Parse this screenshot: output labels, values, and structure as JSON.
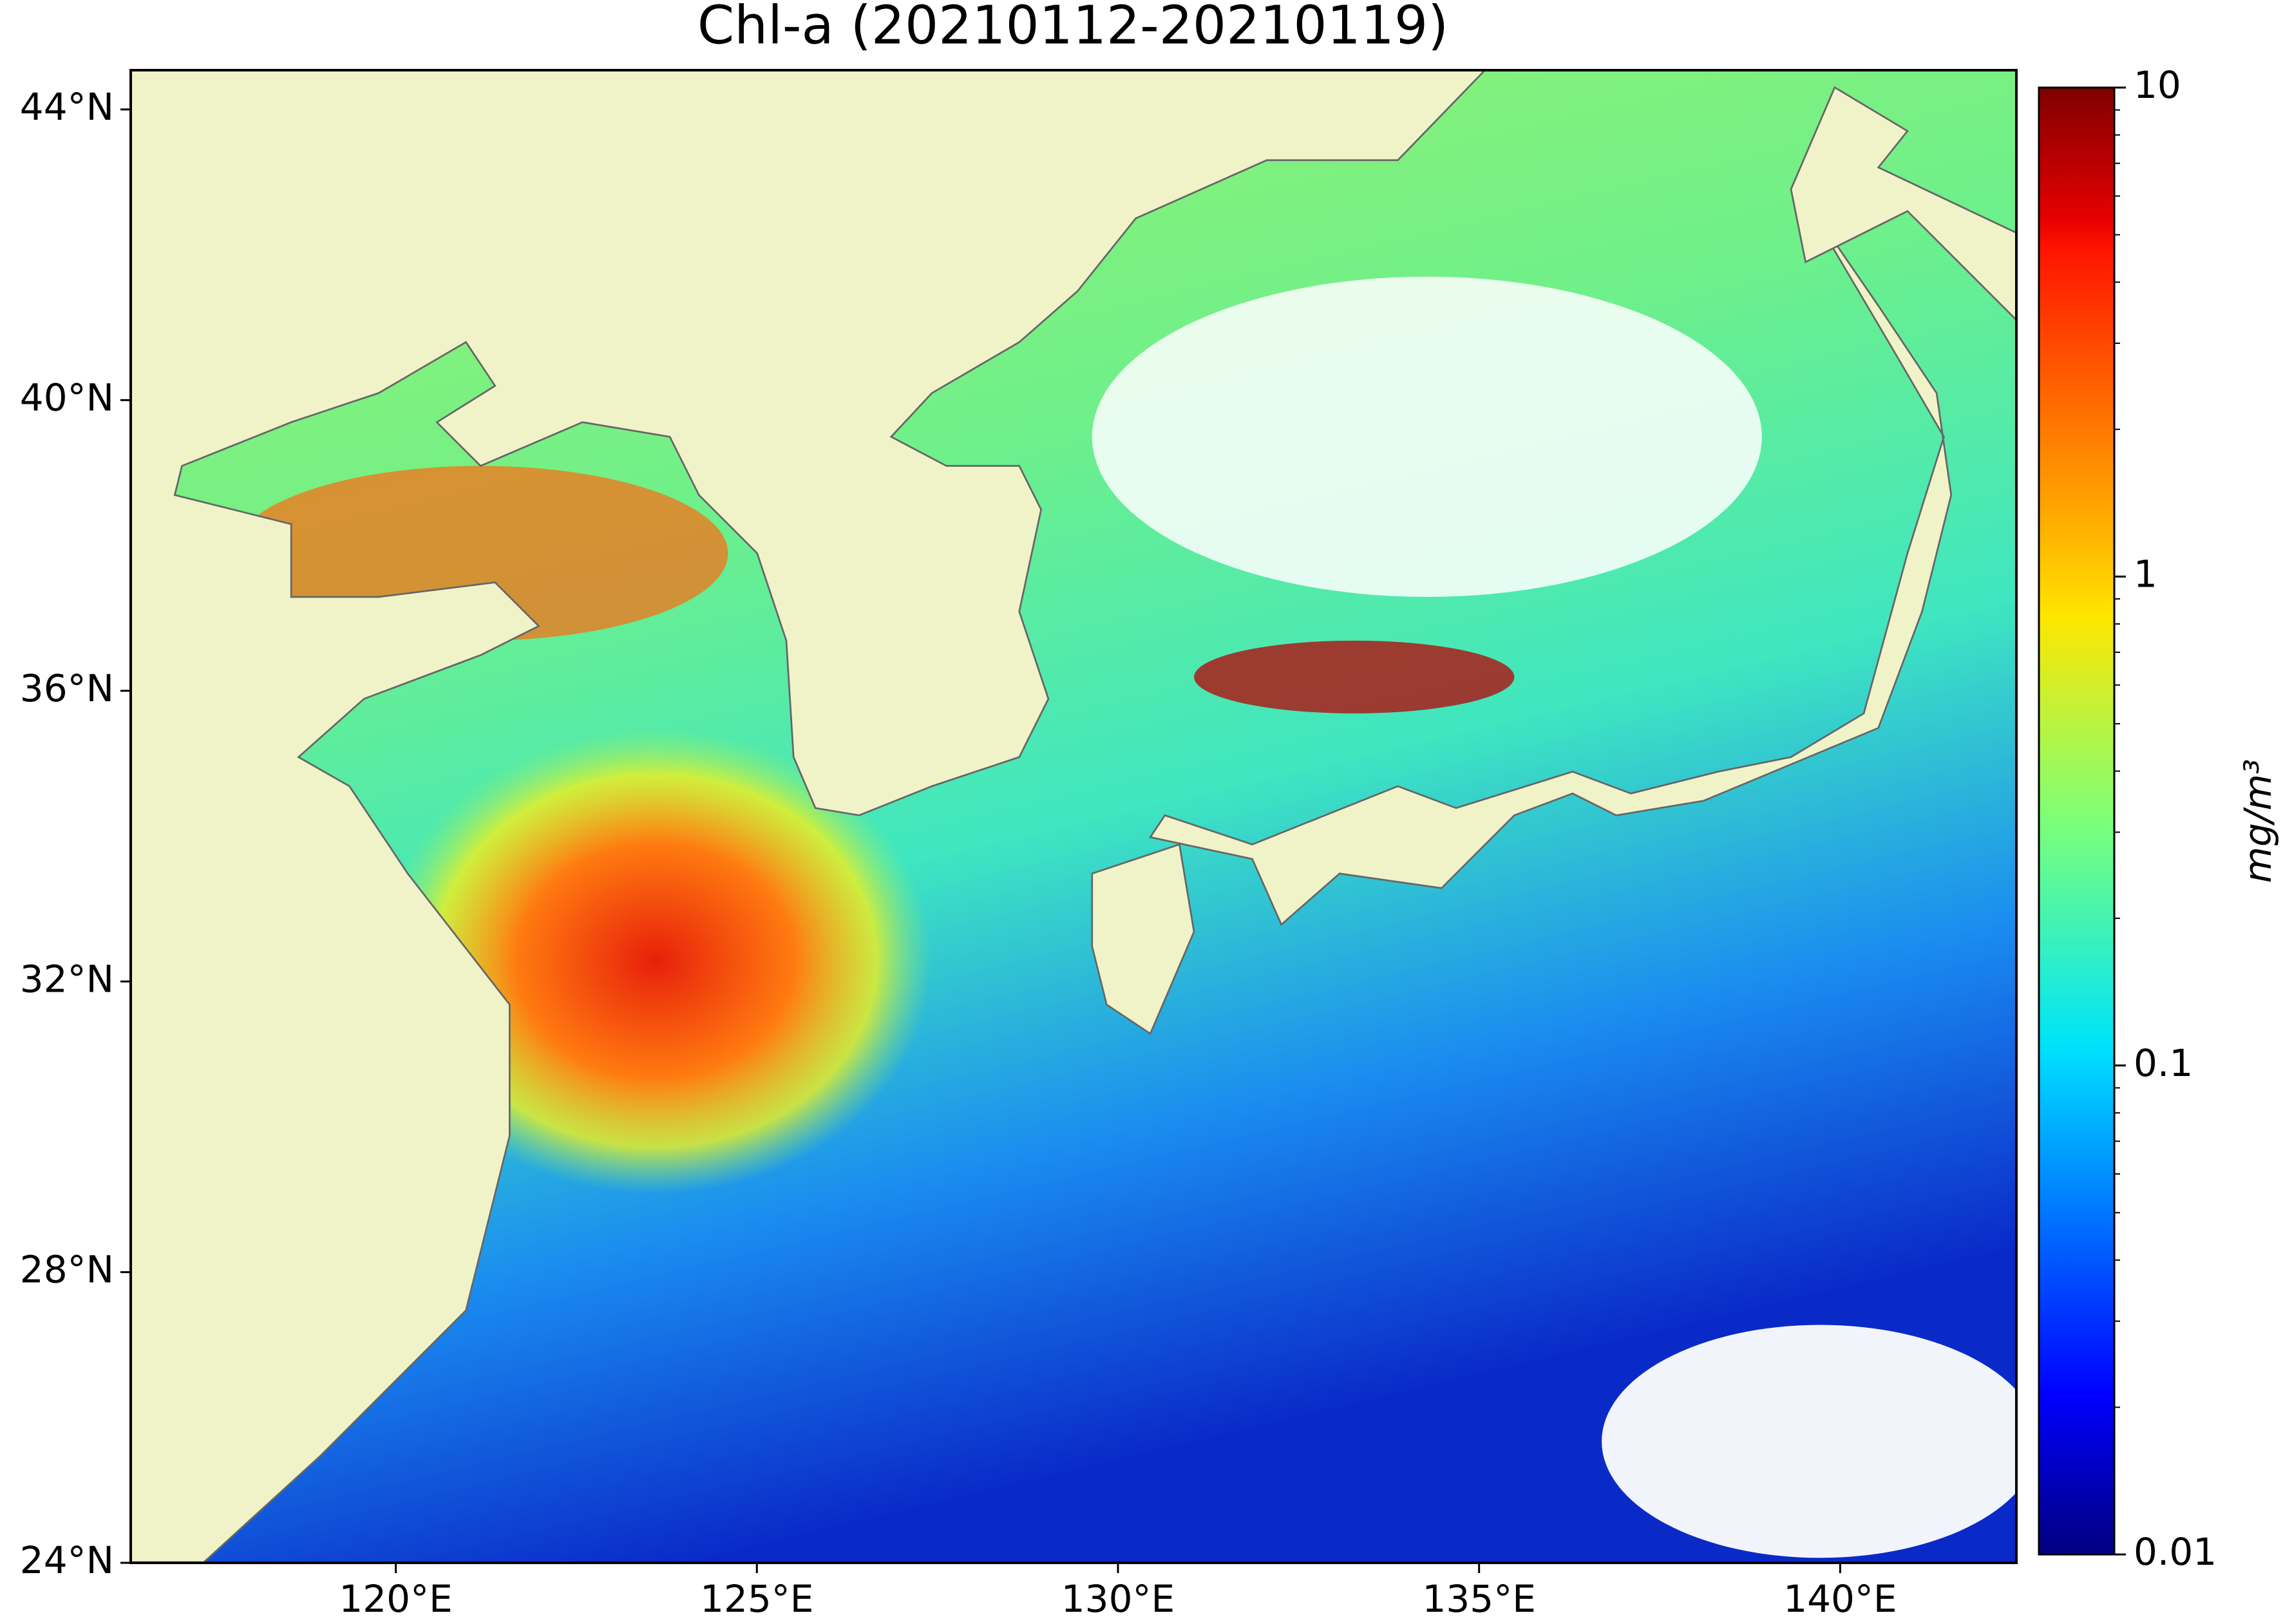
{
  "chart_data": {
    "type": "map",
    "title": "Chl-a (20210112-20210119)",
    "xlim": [
      116.33,
      142.44
    ],
    "ylim": [
      24,
      44.54
    ],
    "xticks": [
      {
        "value": 120,
        "label": "120°E"
      },
      {
        "value": 125,
        "label": "125°E"
      },
      {
        "value": 130,
        "label": "130°E"
      },
      {
        "value": 135,
        "label": "135°E"
      },
      {
        "value": 140,
        "label": "140°E"
      }
    ],
    "yticks": [
      {
        "value": 24,
        "label": "24°N"
      },
      {
        "value": 28,
        "label": "28°N"
      },
      {
        "value": 32,
        "label": "32°N"
      },
      {
        "value": 36,
        "label": "36°N"
      },
      {
        "value": 40,
        "label": "40°N"
      },
      {
        "value": 44,
        "label": "44°N"
      }
    ],
    "colorbar": {
      "label": "mg/m³",
      "lim": [
        0.01,
        10
      ],
      "ticks": [
        0.01,
        0.1,
        1,
        10
      ],
      "scale": "log",
      "colormap": "jet"
    },
    "land_color": "#f0f2c8"
  }
}
